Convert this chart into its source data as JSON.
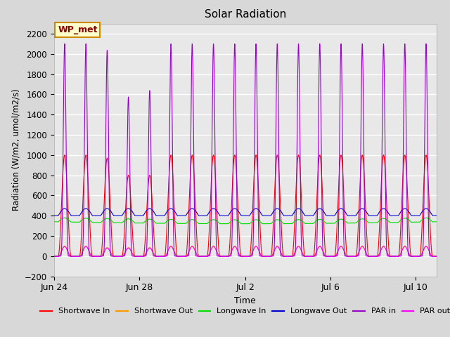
{
  "title": "Solar Radiation",
  "xlabel": "Time",
  "ylabel": "Radiation (W/m2, umol/m2/s)",
  "ylim": [
    -200,
    2300
  ],
  "yticks": [
    -200,
    0,
    200,
    400,
    600,
    800,
    1000,
    1200,
    1400,
    1600,
    1800,
    2000,
    2200
  ],
  "n_days": 18,
  "points_per_day": 288,
  "annotation_text": "WP_met",
  "annotation_bg": "#ffffcc",
  "annotation_border": "#cc8800",
  "bg_color": "#e8e8e8",
  "grid_color": "#ffffff",
  "series": {
    "shortwave_in": {
      "color": "#ff0000",
      "label": "Shortwave In"
    },
    "shortwave_out": {
      "color": "#ff9900",
      "label": "Shortwave Out"
    },
    "longwave_in": {
      "color": "#00dd00",
      "label": "Longwave In"
    },
    "longwave_out": {
      "color": "#0000cc",
      "label": "Longwave Out"
    },
    "par_in": {
      "color": "#9900cc",
      "label": "PAR in"
    },
    "par_out": {
      "color": "#ff00ff",
      "label": "PAR out"
    }
  },
  "xtick_labels": [
    "Jun 24",
    "Jun 28",
    "Jul 2",
    "Jul 6",
    "Jul 10"
  ],
  "xtick_positions": [
    0,
    4,
    9,
    13,
    17
  ],
  "figsize": [
    6.4,
    4.8
  ],
  "dpi": 100
}
